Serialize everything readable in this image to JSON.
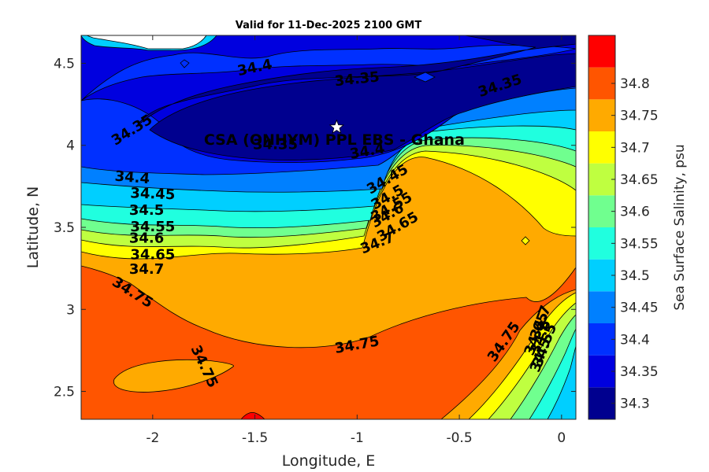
{
  "chart_data": {
    "type": "contour",
    "title": "Valid for 11-Dec-2025 2100 GMT",
    "xlabel": "Longitude, E",
    "ylabel": "Latitude, N",
    "colorbar_label": "Sea Surface Salinity, psu",
    "xlim": [
      -2.35,
      0.07
    ],
    "ylim": [
      2.33,
      4.67
    ],
    "xticks": [
      "-2",
      "-1.5",
      "-1",
      "-0.5",
      "0"
    ],
    "xtick_values": [
      -2,
      -1.5,
      -1,
      -0.5,
      0
    ],
    "yticks": [
      "2.5",
      "3",
      "3.5",
      "4",
      "4.5"
    ],
    "ytick_values": [
      2.5,
      3,
      3.5,
      4,
      4.5
    ],
    "levels": [
      34.3,
      34.35,
      34.4,
      34.45,
      34.5,
      34.55,
      34.6,
      34.65,
      34.7,
      34.75,
      34.8
    ],
    "colorbar_ticks": [
      "34.3",
      "34.35",
      "34.4",
      "34.45",
      "34.5",
      "34.55",
      "34.6",
      "34.65",
      "34.7",
      "34.75",
      "34.8"
    ],
    "colors": [
      "#00008f",
      "#0000df",
      "#0030ff",
      "#0080ff",
      "#00cfff",
      "#20ffdf",
      "#70ff8f",
      "#bfff40",
      "#ffff00",
      "#ffaa00",
      "#ff5500",
      "#ff0000"
    ],
    "site": {
      "name": "CSA (ONHYM) PPL EBS  - Ghana",
      "lon": -1.1,
      "lat": 4.11
    },
    "contour_labels": [
      {
        "text": "34.4",
        "lon": -1.5,
        "lat": 4.47,
        "rot": -12
      },
      {
        "text": "34.35",
        "lon": -1.0,
        "lat": 4.4,
        "rot": -6
      },
      {
        "text": "34.35",
        "lon": -0.3,
        "lat": 4.36,
        "rot": -18
      },
      {
        "text": "34.35",
        "lon": -2.1,
        "lat": 4.09,
        "rot": -32
      },
      {
        "text": "34.35",
        "lon": -1.4,
        "lat": 4.0,
        "rot": 0
      },
      {
        "text": "34.4",
        "lon": -0.95,
        "lat": 3.96,
        "rot": -10
      },
      {
        "text": "34.45",
        "lon": -0.85,
        "lat": 3.79,
        "rot": -30
      },
      {
        "text": "34.5",
        "lon": -0.85,
        "lat": 3.68,
        "rot": -30
      },
      {
        "text": "34.55",
        "lon": -0.83,
        "lat": 3.62,
        "rot": -30
      },
      {
        "text": "34.6",
        "lon": -0.85,
        "lat": 3.57,
        "rot": -30
      },
      {
        "text": "34.65",
        "lon": -0.8,
        "lat": 3.5,
        "rot": -30
      },
      {
        "text": "34.7",
        "lon": -0.9,
        "lat": 3.4,
        "rot": -22
      },
      {
        "text": "34.4",
        "lon": -2.1,
        "lat": 3.8,
        "rot": 5
      },
      {
        "text": "34.45",
        "lon": -2.0,
        "lat": 3.7,
        "rot": 2
      },
      {
        "text": "34.5",
        "lon": -2.03,
        "lat": 3.6,
        "rot": 0
      },
      {
        "text": "34.55",
        "lon": -2.0,
        "lat": 3.5,
        "rot": 0
      },
      {
        "text": "34.6",
        "lon": -2.03,
        "lat": 3.43,
        "rot": 0
      },
      {
        "text": "34.65",
        "lon": -2.0,
        "lat": 3.33,
        "rot": 0
      },
      {
        "text": "34.7",
        "lon": -2.03,
        "lat": 3.24,
        "rot": 0
      },
      {
        "text": "34.75",
        "lon": -2.1,
        "lat": 3.1,
        "rot": 32
      },
      {
        "text": "34.75",
        "lon": -1.0,
        "lat": 2.78,
        "rot": -10
      },
      {
        "text": "34.75",
        "lon": -1.75,
        "lat": 2.65,
        "rot": 65
      },
      {
        "text": "34.75",
        "lon": -0.28,
        "lat": 2.8,
        "rot": -55
      },
      {
        "text": "34.7",
        "lon": -0.1,
        "lat": 2.92,
        "rot": -70
      },
      {
        "text": "34.65",
        "lon": -0.12,
        "lat": 2.85,
        "rot": -70
      },
      {
        "text": "34.6",
        "lon": -0.1,
        "lat": 2.83,
        "rot": -70
      },
      {
        "text": "34.55",
        "lon": -0.08,
        "lat": 2.78,
        "rot": -70
      },
      {
        "text": "34.5",
        "lon": -0.1,
        "lat": 2.72,
        "rot": -70
      }
    ]
  }
}
